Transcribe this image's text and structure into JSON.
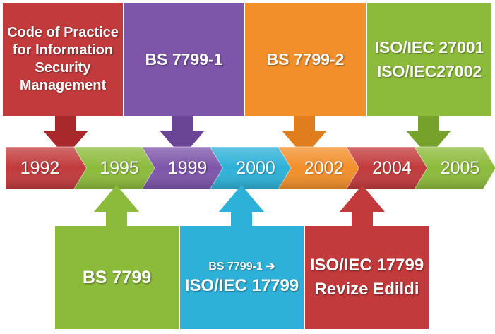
{
  "colors": {
    "red": "#c23a3c",
    "green": "#8cbb3b",
    "purple": "#7d55a9",
    "blue": "#2eb1d8",
    "orange": "#f28f2a"
  },
  "top_boxes": [
    {
      "text": "Code of Practice for Information Security Management",
      "color": "red"
    },
    {
      "text": "BS 7799-1",
      "color": "purple"
    },
    {
      "text": "BS 7799-2",
      "color": "orange"
    },
    {
      "line1": "ISO/IEC 27001",
      "line2": "ISO/IEC27002",
      "color": "green"
    }
  ],
  "timeline": [
    {
      "year": "1992",
      "color": "red"
    },
    {
      "year": "1995",
      "color": "green"
    },
    {
      "year": "1999",
      "color": "purple"
    },
    {
      "year": "2000",
      "color": "blue"
    },
    {
      "year": "2002",
      "color": "orange"
    },
    {
      "year": "2004",
      "color": "red"
    },
    {
      "year": "2005",
      "color": "green"
    }
  ],
  "bottom_boxes": [
    {
      "text": "BS 7799",
      "color": "green"
    },
    {
      "line1": "BS 7799-1 ➔",
      "line2": "ISO/IEC 17799",
      "color": "blue"
    },
    {
      "line1": "ISO/IEC 17799",
      "line2": "Revize Edildi",
      "color": "red"
    }
  ]
}
